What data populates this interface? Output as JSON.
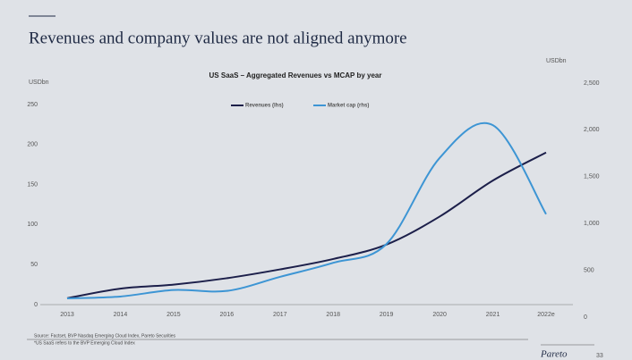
{
  "slide_title": "Revenues and company values are not aligned anymore",
  "chart_data": {
    "type": "line",
    "title": "US SaaS – Aggregated Revenues vs MCAP by year",
    "y_label": "USDbn",
    "y2_label": "USDbn",
    "categories": [
      "2013",
      "2014",
      "2015",
      "2016",
      "2017",
      "2018",
      "2019",
      "2020",
      "2021",
      "2022e"
    ],
    "series": [
      {
        "name": "Revenues (lhs)",
        "color": "#1c1f4a",
        "values": [
          8,
          20,
          25,
          33,
          44,
          57,
          75,
          110,
          155,
          190
        ]
      },
      {
        "name": "Market cap (rhs)",
        "color": "#3d95d4",
        "axis": "y2",
        "values": [
          200,
          220,
          290,
          280,
          430,
          580,
          780,
          1700,
          2050,
          1100
        ]
      }
    ],
    "ylim": [
      0,
      250
    ],
    "yticks": [
      0,
      50,
      100,
      150,
      200,
      250
    ],
    "y2lim": [
      0,
      2500
    ],
    "y2ticks": [
      0,
      500,
      {
        "value": 1000,
        "label": "1,000"
      },
      {
        "value": 1500,
        "label": "1,500"
      },
      {
        "value": 2000,
        "label": "2,000"
      },
      {
        "value": 2500,
        "label": "2,500"
      }
    ],
    "legend": "top"
  },
  "footnotes": [
    "Source: Factset, BVP Nasdaq Emerging Cloud Index, Pareto Securities",
    "*US SaaS refers to the BVP Emerging Cloud Index"
  ],
  "footer": {
    "brand": "Pareto",
    "page": "33"
  }
}
